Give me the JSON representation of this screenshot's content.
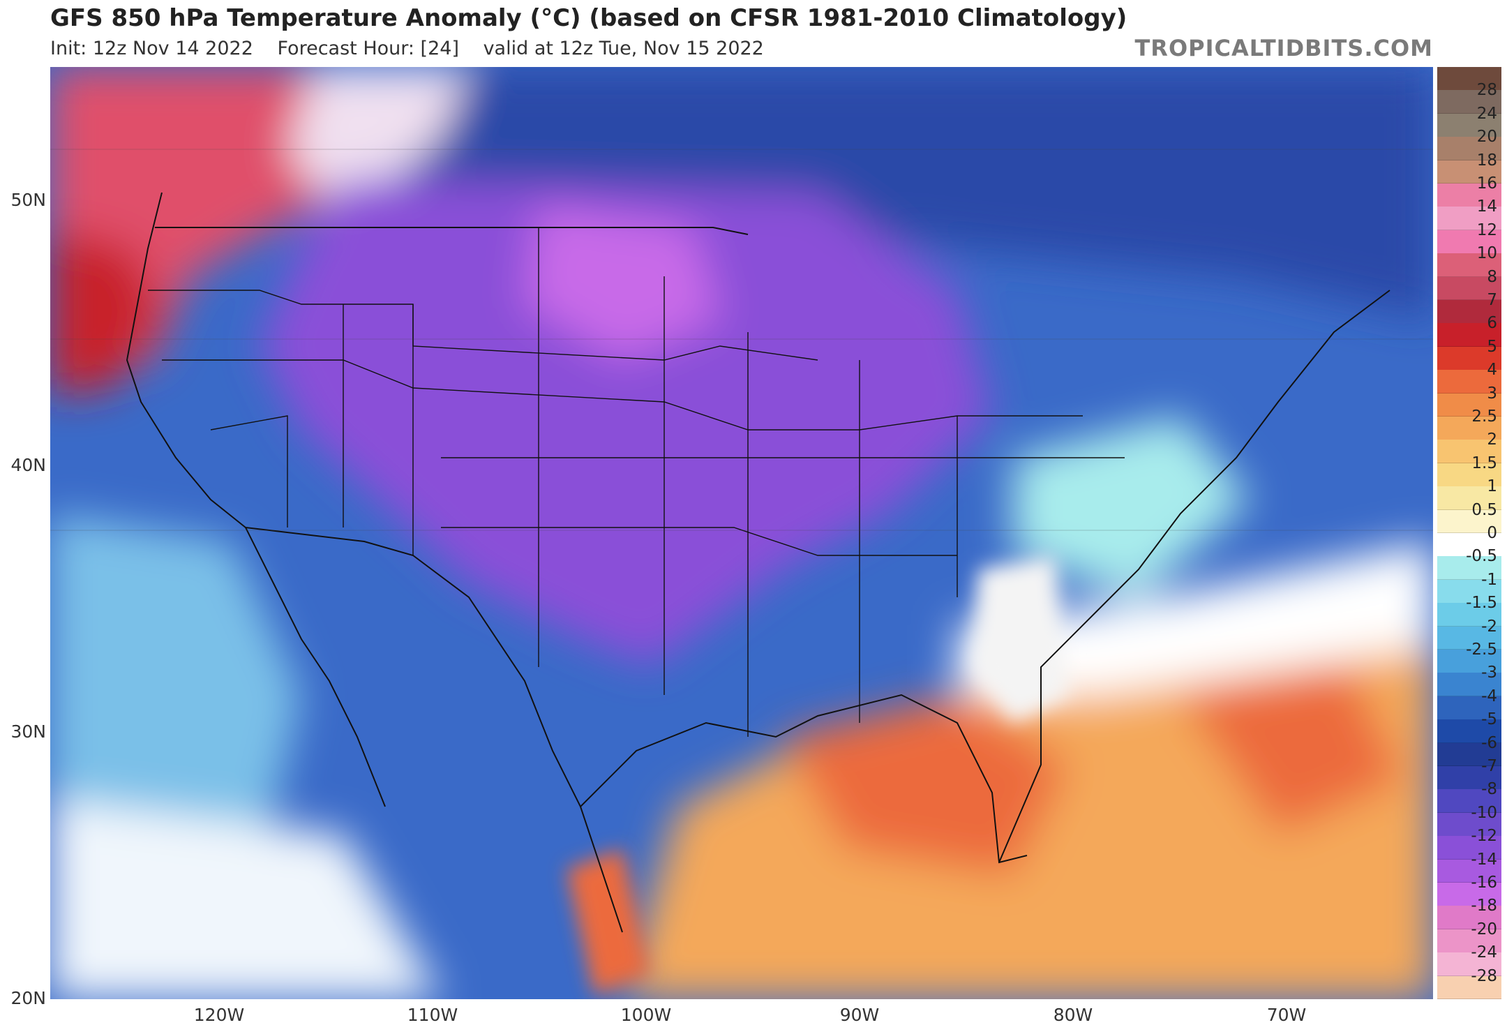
{
  "header": {
    "title": "GFS 850 hPa Temperature Anomaly (°C) (based on CFSR 1981-2010 Climatology)",
    "init": "Init: 12z Nov 14 2022",
    "forecast_hour": "Forecast Hour: [24]",
    "valid": "valid at 12z Tue, Nov 15 2022",
    "brand": "TROPICALTIDBITS.COM"
  },
  "map": {
    "lat_labels": [
      "50N",
      "40N",
      "30N",
      "20N"
    ],
    "lon_labels": [
      "120W",
      "110W",
      "100W",
      "90W",
      "80W",
      "70W"
    ]
  },
  "colorbar": {
    "labels": [
      "28",
      "24",
      "20",
      "18",
      "16",
      "14",
      "12",
      "10",
      "8",
      "7",
      "6",
      "5",
      "4",
      "3",
      "2.5",
      "2",
      "1.5",
      "1",
      "0.5",
      "0",
      "-0.5",
      "-1",
      "-1.5",
      "-2",
      "-2.5",
      "-3",
      "-4",
      "-5",
      "-6",
      "-7",
      "-8",
      "-10",
      "-12",
      "-14",
      "-16",
      "-18",
      "-20",
      "-24",
      "-28"
    ],
    "colors": [
      "#6e4a3c",
      "#7e6a60",
      "#8c8070",
      "#a8806a",
      "#c89074",
      "#ec7fa6",
      "#f09ec4",
      "#f07ab0",
      "#dc6078",
      "#c84a62",
      "#b02a3c",
      "#c8202a",
      "#dc3a2a",
      "#ec6a3c",
      "#f08c48",
      "#f4a85a",
      "#f8c470",
      "#f8d884",
      "#f8e8a4",
      "#fcf4cc",
      "#ffffff",
      "#a8ecec",
      "#88dcec",
      "#6ccce8",
      "#58b8e4",
      "#48a0dc",
      "#3a84d0",
      "#2e64bc",
      "#1e4aa8",
      "#223c94",
      "#3040a8",
      "#5048c0",
      "#6e4ccc",
      "#8a50d8",
      "#a85ae0",
      "#c86ae8",
      "#e07ac8",
      "#ec94c8",
      "#f4b4d4",
      "#f8d0b0"
    ]
  }
}
